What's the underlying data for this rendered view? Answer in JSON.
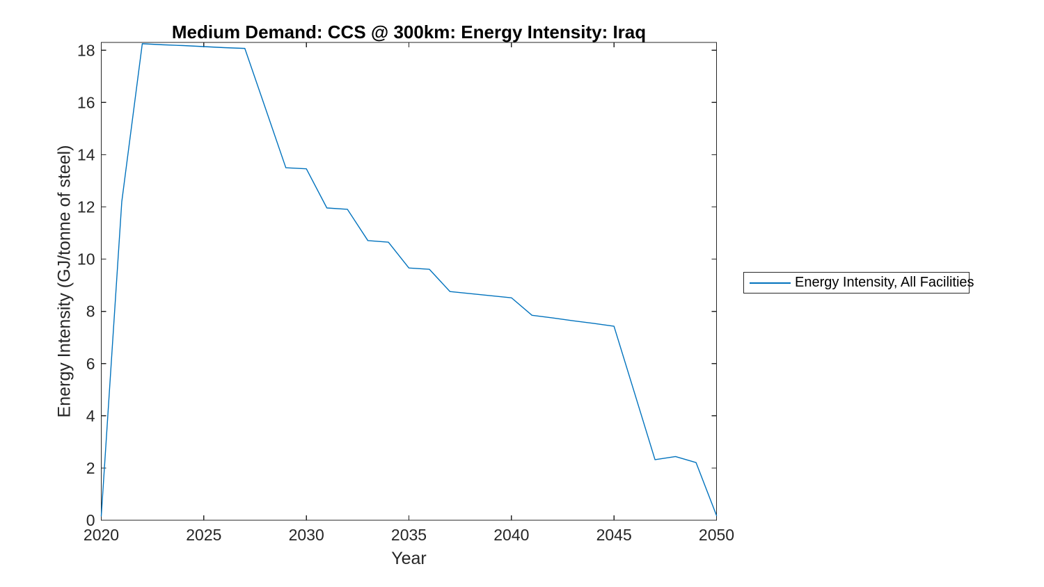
{
  "colors": {
    "line": "#0072BD",
    "axis": "#262626",
    "tick_text": "#262626",
    "title_text": "#000000",
    "background": "#FFFFFF"
  },
  "legend": {
    "label": "Energy Intensity, All Facilities"
  },
  "chart_data": {
    "type": "line",
    "title": "Medium Demand: CCS @ 300km: Energy Intensity: Iraq",
    "xlabel": "Year",
    "ylabel": "Energy Intensity (GJ/tonne of steel)",
    "legend": [
      "Energy Intensity, All Facilities"
    ],
    "legend_position": "outside-right",
    "grid": false,
    "box": true,
    "tick_direction": "in",
    "xlim": [
      2020,
      2050
    ],
    "ylim": [
      0,
      18.3
    ],
    "x_ticks": [
      2020,
      2025,
      2030,
      2035,
      2040,
      2045,
      2050
    ],
    "y_ticks": [
      0,
      2,
      4,
      6,
      8,
      10,
      12,
      14,
      16,
      18
    ],
    "x": [
      2020,
      2021,
      2022,
      2023,
      2024,
      2025,
      2026,
      2027,
      2028,
      2029,
      2030,
      2031,
      2032,
      2033,
      2034,
      2035,
      2036,
      2037,
      2038,
      2039,
      2040,
      2041,
      2042,
      2043,
      2044,
      2045,
      2046,
      2047,
      2048,
      2049,
      2050
    ],
    "series": [
      {
        "name": "Energy Intensity, All Facilities",
        "values": [
          0.16,
          12.2,
          18.25,
          18.21,
          18.18,
          18.14,
          18.1,
          18.07,
          15.79,
          13.5,
          13.46,
          11.96,
          11.91,
          10.71,
          10.65,
          9.66,
          9.61,
          8.76,
          8.68,
          8.6,
          8.52,
          7.85,
          7.75,
          7.64,
          7.54,
          7.43,
          4.88,
          2.32,
          2.44,
          2.21,
          0.18
        ]
      }
    ]
  }
}
